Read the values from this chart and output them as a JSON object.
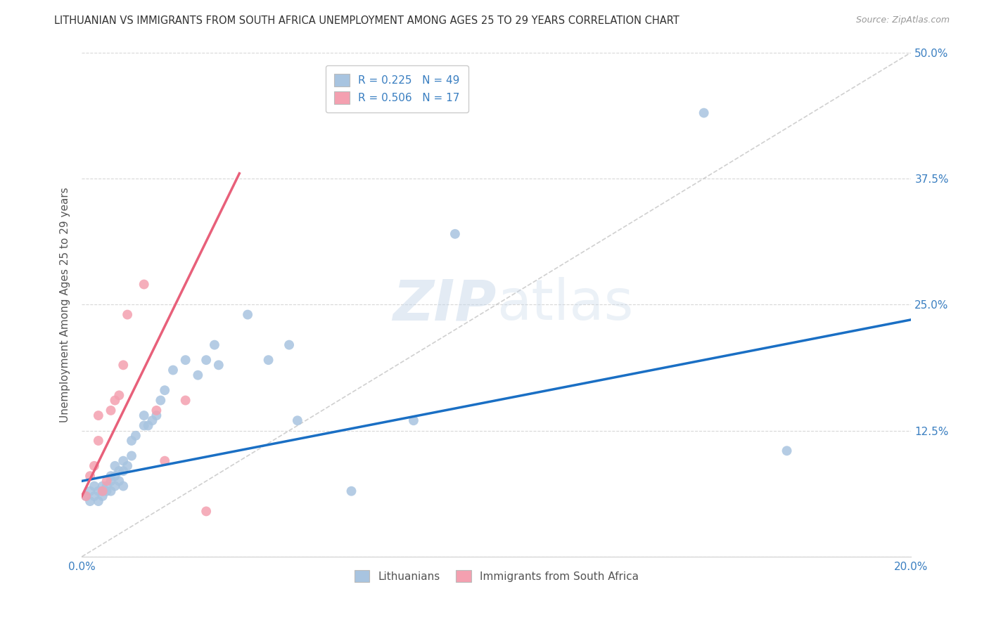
{
  "title": "LITHUANIAN VS IMMIGRANTS FROM SOUTH AFRICA UNEMPLOYMENT AMONG AGES 25 TO 29 YEARS CORRELATION CHART",
  "source": "Source: ZipAtlas.com",
  "ylabel": "Unemployment Among Ages 25 to 29 years",
  "xlim": [
    0.0,
    0.2
  ],
  "ylim": [
    0.0,
    0.5
  ],
  "xticks": [
    0.0,
    0.05,
    0.1,
    0.15,
    0.2
  ],
  "yticks": [
    0.0,
    0.125,
    0.25,
    0.375,
    0.5
  ],
  "ytick_labels_right": [
    "",
    "12.5%",
    "25.0%",
    "37.5%",
    "50.0%"
  ],
  "xtick_labels": [
    "0.0%",
    "",
    "",
    "",
    "20.0%"
  ],
  "background_color": "#ffffff",
  "watermark_zip": "ZIP",
  "watermark_atlas": "atlas",
  "blue_color": "#a8c4e0",
  "pink_color": "#f4a0b0",
  "blue_line_color": "#1a6fc4",
  "pink_line_color": "#e8607a",
  "diag_color": "#c8c8c8",
  "R_blue": 0.225,
  "N_blue": 49,
  "R_pink": 0.506,
  "N_pink": 17,
  "blue_scatter_x": [
    0.001,
    0.002,
    0.002,
    0.003,
    0.003,
    0.004,
    0.004,
    0.005,
    0.005,
    0.005,
    0.006,
    0.006,
    0.007,
    0.007,
    0.007,
    0.008,
    0.008,
    0.008,
    0.009,
    0.009,
    0.01,
    0.01,
    0.01,
    0.011,
    0.012,
    0.012,
    0.013,
    0.015,
    0.015,
    0.016,
    0.017,
    0.018,
    0.019,
    0.02,
    0.022,
    0.025,
    0.028,
    0.03,
    0.032,
    0.033,
    0.04,
    0.045,
    0.05,
    0.052,
    0.065,
    0.08,
    0.09,
    0.15,
    0.17
  ],
  "blue_scatter_y": [
    0.06,
    0.055,
    0.065,
    0.06,
    0.07,
    0.055,
    0.065,
    0.06,
    0.065,
    0.07,
    0.065,
    0.07,
    0.065,
    0.075,
    0.08,
    0.07,
    0.08,
    0.09,
    0.075,
    0.085,
    0.07,
    0.085,
    0.095,
    0.09,
    0.1,
    0.115,
    0.12,
    0.13,
    0.14,
    0.13,
    0.135,
    0.14,
    0.155,
    0.165,
    0.185,
    0.195,
    0.18,
    0.195,
    0.21,
    0.19,
    0.24,
    0.195,
    0.21,
    0.135,
    0.065,
    0.135,
    0.32,
    0.44,
    0.105
  ],
  "pink_scatter_x": [
    0.001,
    0.002,
    0.003,
    0.004,
    0.004,
    0.005,
    0.006,
    0.007,
    0.008,
    0.009,
    0.01,
    0.011,
    0.015,
    0.018,
    0.02,
    0.025,
    0.03
  ],
  "pink_scatter_y": [
    0.06,
    0.08,
    0.09,
    0.115,
    0.14,
    0.065,
    0.075,
    0.145,
    0.155,
    0.16,
    0.19,
    0.24,
    0.27,
    0.145,
    0.095,
    0.155,
    0.045
  ],
  "blue_line_x0": 0.0,
  "blue_line_x1": 0.2,
  "blue_line_y0": 0.075,
  "blue_line_y1": 0.235,
  "pink_line_x0": 0.0,
  "pink_line_x1": 0.038,
  "pink_line_y0": 0.06,
  "pink_line_y1": 0.38
}
